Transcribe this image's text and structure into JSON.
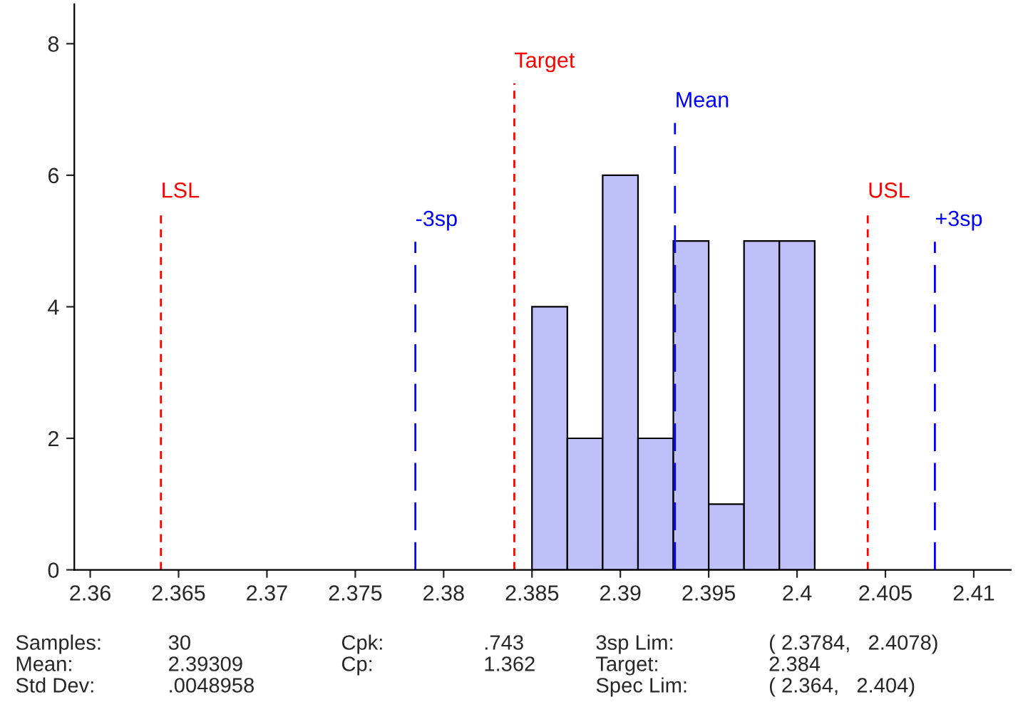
{
  "chart_data": {
    "type": "histogram",
    "bins": [
      2.385,
      2.387,
      2.389,
      2.391,
      2.393,
      2.395,
      2.397,
      2.399,
      2.401
    ],
    "values": [
      4,
      2,
      6,
      2,
      5,
      1,
      5,
      5
    ],
    "color": "#bfbffa",
    "xlim": [
      2.3591,
      2.4121
    ],
    "xticks": [
      2.36,
      2.365,
      2.37,
      2.375,
      2.38,
      2.385,
      2.39,
      2.395,
      2.4,
      2.405,
      2.41
    ],
    "ylim": [
      0,
      8.6
    ],
    "yticks": [
      0,
      2,
      4,
      6,
      8
    ],
    "grid": false,
    "ref_lines": [
      {
        "axis": "x",
        "value": 2.364,
        "label": "LSL",
        "color": "#ff0000",
        "line_style": "dashed"
      },
      {
        "axis": "x",
        "value": 2.3784,
        "label": "-3sp",
        "color": "#0000ff",
        "line_style": "longdash"
      },
      {
        "axis": "x",
        "value": 2.384,
        "label": "Target",
        "color": "#ff0000",
        "line_style": "dashed"
      },
      {
        "axis": "x",
        "value": 2.39309,
        "label": "Mean",
        "color": "#0000ff",
        "line_style": "longdash"
      },
      {
        "axis": "x",
        "value": 2.404,
        "label": "USL",
        "color": "#ff0000",
        "line_style": "dashed"
      },
      {
        "axis": "x",
        "value": 2.4078,
        "label": "+3sp",
        "color": "#0000ff",
        "line_style": "longdash"
      }
    ],
    "annotations": [
      "Samples:",
      "30",
      "Cpk:",
      ".743",
      "3sp Lim:",
      "( 2.3784,   2.4078)",
      "Mean:",
      "2.39309",
      "Cp:",
      "1.362",
      "Target:",
      "2.384",
      "Std Dev:",
      ".0048958",
      "Spec Lim:",
      "( 2.364,   2.404)"
    ]
  }
}
